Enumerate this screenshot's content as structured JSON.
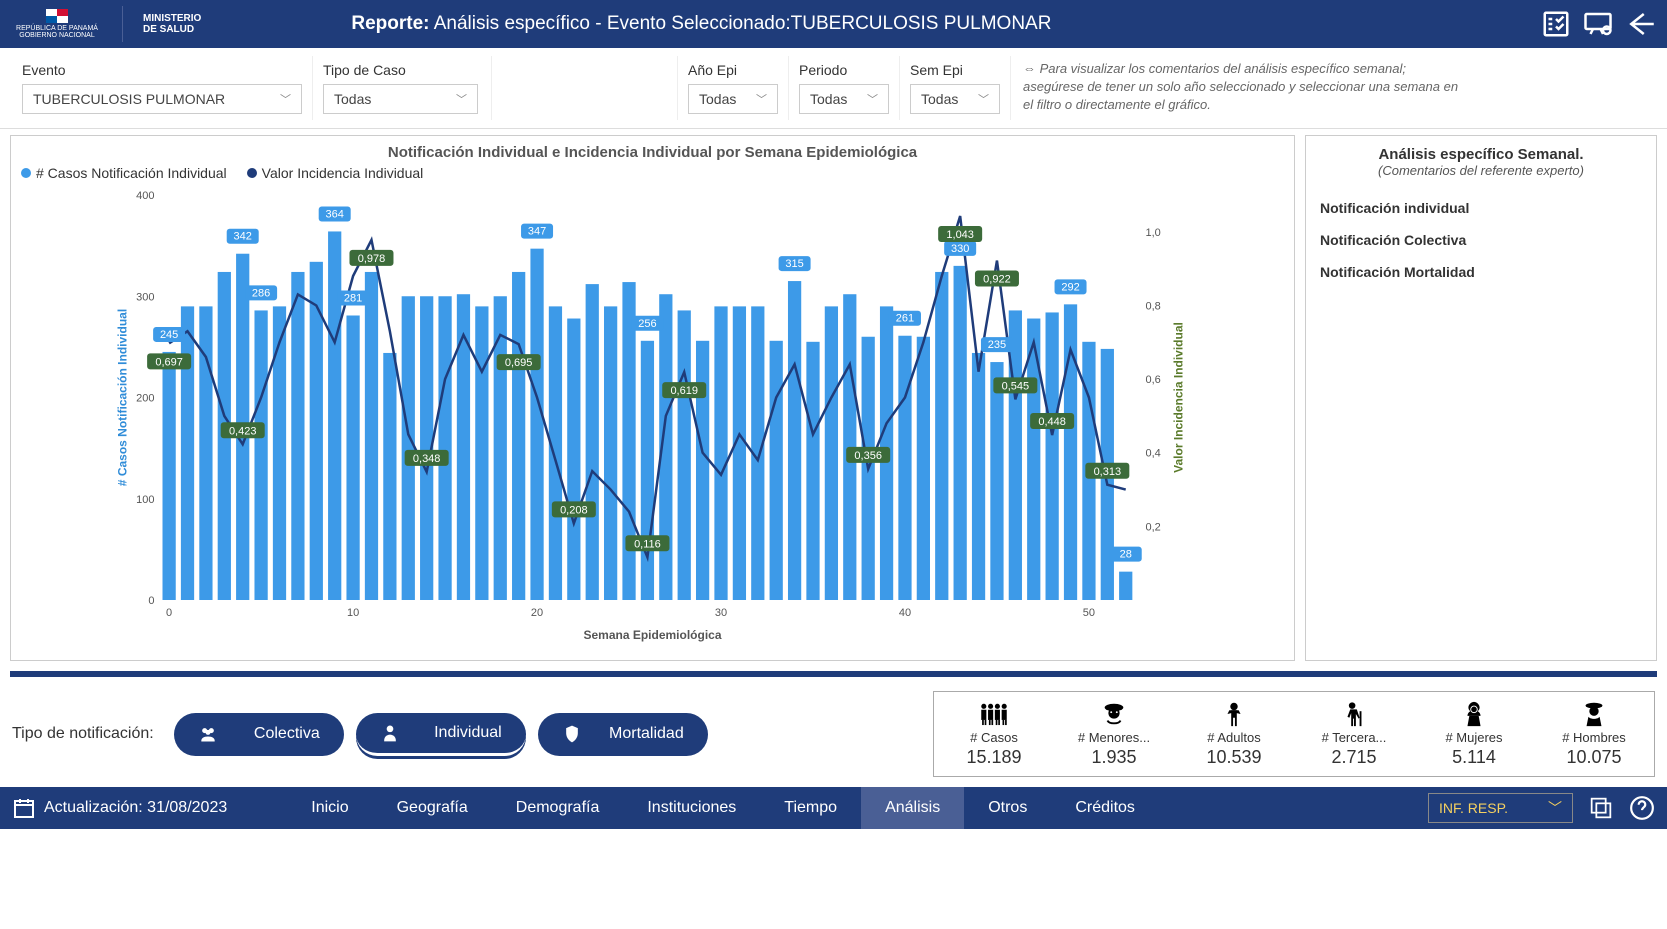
{
  "header": {
    "gov_line1": "REPÚBLICA DE PANAMÁ",
    "gov_line2": "GOBIERNO NACIONAL",
    "ministry_line1": "MINISTERIO",
    "ministry_line2": "DE SALUD",
    "report_bold": "Reporte:",
    "report_rest": " Análisis específico - Evento Seleccionado:TUBERCULOSIS  PULMONAR"
  },
  "filters": {
    "evento": {
      "label": "Evento",
      "value": "TUBERCULOSIS PULMONAR"
    },
    "tipo_caso": {
      "label": "Tipo de Caso",
      "value": "Todas"
    },
    "ano": {
      "label": "Año Epi",
      "value": "Todas"
    },
    "periodo": {
      "label": "Periodo",
      "value": "Todas"
    },
    "sem": {
      "label": "Sem Epi",
      "value": "Todas"
    },
    "hint": "⇔ Para visualizar los comentarios del análisis específico semanal; asegúrese de tener un solo año seleccionado y seleccionar una semana en el filtro o directamente el gráfico."
  },
  "chart": {
    "title": "Notificación Individual e Incidencia Individual por Semana Epidemiológica",
    "legend_bars": "# Casos Notificación Individual",
    "legend_line": "Valor Incidencia Individual",
    "x_title": "Semana Epidemiológica",
    "y_title": "# Casos Notificación Individual",
    "y2_title": "Valor Incidencia Individual",
    "y_ticks": [
      0,
      100,
      200,
      300,
      400
    ],
    "y2_ticks": [
      "0,2",
      "0,4",
      "0,6",
      "0,8",
      "1,0"
    ],
    "y2_tick_vals": [
      0.2,
      0.4,
      0.6,
      0.8,
      1.0
    ],
    "x_ticks": [
      0,
      10,
      20,
      30,
      40,
      50
    ],
    "bar_color": "#3d9ae8",
    "line_color": "#1f3c7a",
    "bar_badge_bg": "#3d9ae8",
    "line_badge_bg": "#3c6b3a",
    "y_max": 400,
    "y2_max": 1.1,
    "bars": [
      245,
      290,
      290,
      324,
      342,
      286,
      290,
      324,
      334,
      364,
      281,
      324,
      244,
      300,
      300,
      300,
      302,
      290,
      300,
      324,
      347,
      290,
      278,
      312,
      290,
      314,
      256,
      302,
      286,
      256,
      290,
      290,
      290,
      256,
      315,
      255,
      290,
      302,
      260,
      290,
      261,
      260,
      324,
      330,
      244,
      235,
      286,
      278,
      284,
      292,
      255,
      248,
      28
    ],
    "line_vals": [
      0.697,
      0.73,
      0.66,
      0.5,
      0.423,
      0.55,
      0.7,
      0.83,
      0.8,
      0.7,
      0.88,
      0.978,
      0.73,
      0.45,
      0.348,
      0.6,
      0.72,
      0.62,
      0.72,
      0.695,
      0.55,
      0.38,
      0.208,
      0.35,
      0.3,
      0.24,
      0.116,
      0.5,
      0.619,
      0.4,
      0.34,
      0.45,
      0.38,
      0.55,
      0.64,
      0.45,
      0.55,
      0.64,
      0.356,
      0.48,
      0.55,
      0.7,
      0.88,
      1.043,
      0.62,
      0.922,
      0.545,
      0.7,
      0.448,
      0.68,
      0.55,
      0.313,
      0.3
    ],
    "bar_callouts": [
      {
        "i": 0,
        "v": "245"
      },
      {
        "i": 4,
        "v": "342"
      },
      {
        "i": 5,
        "v": "286"
      },
      {
        "i": 9,
        "v": "364"
      },
      {
        "i": 10,
        "v": "281"
      },
      {
        "i": 20,
        "v": "347"
      },
      {
        "i": 26,
        "v": "256"
      },
      {
        "i": 34,
        "v": "315"
      },
      {
        "i": 40,
        "v": "261"
      },
      {
        "i": 43,
        "v": "330"
      },
      {
        "i": 45,
        "v": "235"
      },
      {
        "i": 49,
        "v": "292"
      },
      {
        "i": 52,
        "v": "28"
      }
    ],
    "line_callouts": [
      {
        "i": 0,
        "v": "0,697"
      },
      {
        "i": 4,
        "v": "0,423"
      },
      {
        "i": 11,
        "v": "0,978"
      },
      {
        "i": 14,
        "v": "0,348"
      },
      {
        "i": 19,
        "v": "0,695"
      },
      {
        "i": 22,
        "v": "0,208"
      },
      {
        "i": 26,
        "v": "0,116"
      },
      {
        "i": 28,
        "v": "0,619"
      },
      {
        "i": 38,
        "v": "0,356"
      },
      {
        "i": 43,
        "v": "1,043"
      },
      {
        "i": 45,
        "v": "0,922"
      },
      {
        "i": 46,
        "v": "0,545"
      },
      {
        "i": 48,
        "v": "0,448"
      },
      {
        "i": 51,
        "v": "0,313"
      }
    ]
  },
  "side": {
    "title": "Análisis específico Semanal.",
    "subtitle": "(Comentarios del referente experto)",
    "items": [
      "Notificación individual",
      "Notificación Colectiva",
      "Notificación Mortalidad"
    ]
  },
  "notif": {
    "label": "Tipo de notificación:",
    "pills": [
      "Colectiva",
      "Individual",
      "Mortalidad"
    ],
    "selected_index": 1
  },
  "stats": [
    {
      "label": "# Casos",
      "val": "15.189",
      "icon": "group"
    },
    {
      "label": "# Menores...",
      "val": "1.935",
      "icon": "child"
    },
    {
      "label": "# Adultos",
      "val": "10.539",
      "icon": "adult"
    },
    {
      "label": "# Tercera...",
      "val": "2.715",
      "icon": "elder"
    },
    {
      "label": "# Mujeres",
      "val": "5.114",
      "icon": "female"
    },
    {
      "label": "# Hombres",
      "val": "10.075",
      "icon": "male"
    }
  ],
  "nav": {
    "update_label": "Actualización: 31/08/2023",
    "tabs": [
      "Inicio",
      "Geografía",
      "Demografía",
      "Instituciones",
      "Tiempo",
      "Análisis",
      "Otros",
      "Créditos"
    ],
    "active_index": 5,
    "select_value": "INF. RESP."
  }
}
